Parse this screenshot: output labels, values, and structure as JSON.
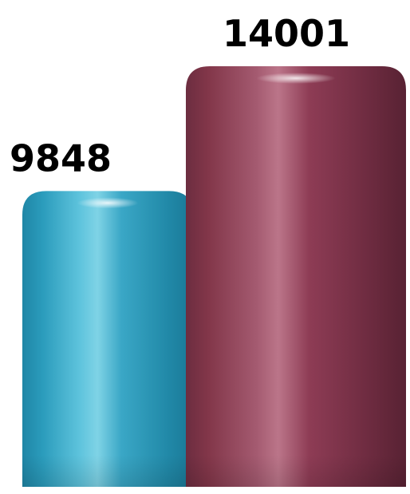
{
  "chart_data": {
    "type": "bar",
    "categories": [
      "",
      ""
    ],
    "values": [
      9848,
      14001
    ],
    "data_labels": [
      "9848",
      "14001"
    ],
    "colors": [
      "#2a9fc0",
      "#8c3a52"
    ],
    "title": "",
    "xlabel": "",
    "ylabel": "",
    "ylim": [
      0,
      14001
    ],
    "grid": false,
    "legend": "none"
  }
}
